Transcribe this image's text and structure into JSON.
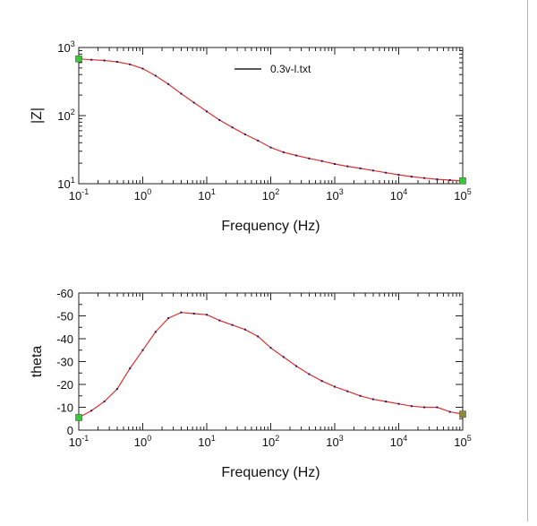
{
  "chart_data": [
    {
      "type": "line",
      "xlabel": "Frequency (Hz)",
      "ylabel": "|Z|",
      "x_scale": "log",
      "y_scale": "log",
      "xlim": [
        0.1,
        100000
      ],
      "ylim": [
        10,
        1000
      ],
      "x_ticks": [
        {
          "value": 0.1,
          "base": "10",
          "exp": "-1"
        },
        {
          "value": 1,
          "base": "10",
          "exp": "0"
        },
        {
          "value": 10,
          "base": "10",
          "exp": "1"
        },
        {
          "value": 100,
          "base": "10",
          "exp": "2"
        },
        {
          "value": 1000,
          "base": "10",
          "exp": "3"
        },
        {
          "value": 10000,
          "base": "10",
          "exp": "4"
        },
        {
          "value": 100000,
          "base": "10",
          "exp": "5"
        }
      ],
      "y_ticks": [
        {
          "value": 10,
          "base": "10",
          "exp": "1"
        },
        {
          "value": 100,
          "base": "10",
          "exp": "2"
        },
        {
          "value": 1000,
          "base": "10",
          "exp": "3"
        }
      ],
      "legend": {
        "position": "top-center",
        "entries": [
          "0.3v-l.txt"
        ]
      },
      "series": [
        {
          "name": "0.3v-l.txt",
          "color": "#e03030",
          "marker_color": "#1a1a6a",
          "endpoint_color": "#33cc33",
          "x": [
            0.1,
            0.158,
            0.251,
            0.398,
            0.631,
            1,
            1.585,
            2.512,
            3.981,
            6.31,
            10,
            15.85,
            25.12,
            39.81,
            63.1,
            100,
            158.5,
            251.2,
            398.1,
            631,
            1000,
            1585,
            2512,
            3981,
            6310,
            10000,
            15850,
            25120,
            39810,
            63100,
            100000
          ],
          "values": [
            680,
            660,
            645,
            615,
            565,
            490,
            385,
            290,
            210,
            155,
            115,
            86,
            67,
            53,
            43,
            34,
            29,
            26,
            23.5,
            21.5,
            19.5,
            18,
            16.8,
            15.6,
            14.5,
            13.5,
            12.7,
            12.1,
            11.6,
            11.3,
            11.0
          ]
        }
      ]
    },
    {
      "type": "line",
      "xlabel": "Frequency (Hz)",
      "ylabel": "theta",
      "x_scale": "log",
      "xlim": [
        0.1,
        100000
      ],
      "ylim": [
        0,
        -60
      ],
      "x_ticks": [
        {
          "value": 0.1,
          "base": "10",
          "exp": "-1"
        },
        {
          "value": 1,
          "base": "10",
          "exp": "0"
        },
        {
          "value": 10,
          "base": "10",
          "exp": "1"
        },
        {
          "value": 100,
          "base": "10",
          "exp": "2"
        },
        {
          "value": 1000,
          "base": "10",
          "exp": "3"
        },
        {
          "value": 10000,
          "base": "10",
          "exp": "4"
        },
        {
          "value": 100000,
          "base": "10",
          "exp": "5"
        }
      ],
      "y_ticks": [
        "-60",
        "-50",
        "-40",
        "-30",
        "-20",
        "-10",
        "0"
      ],
      "series": [
        {
          "name": "",
          "color": "#e03030",
          "marker_color": "#1a1a6a",
          "start_marker_color": "#33cc33",
          "end_marker_color": "#8a8a30",
          "x": [
            0.1,
            0.158,
            0.251,
            0.398,
            0.631,
            1,
            1.585,
            2.512,
            3.981,
            6.31,
            10,
            15.85,
            25.12,
            39.81,
            63.1,
            100,
            158.5,
            251.2,
            398.1,
            631,
            1000,
            1585,
            2512,
            3981,
            6310,
            10000,
            15850,
            25120,
            39810,
            63100,
            100000
          ],
          "values": [
            -5.5,
            -8.5,
            -12.5,
            -18,
            -27,
            -35,
            -43,
            -49,
            -51.5,
            -51,
            -50.5,
            -48,
            -46,
            -44,
            -41,
            -36,
            -32,
            -28,
            -24.5,
            -21.5,
            -19,
            -17,
            -15,
            -13.5,
            -12.5,
            -11.5,
            -10.5,
            -10,
            -10,
            -8,
            -7
          ]
        }
      ]
    }
  ]
}
